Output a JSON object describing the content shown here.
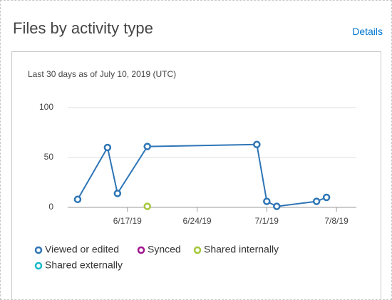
{
  "header": {
    "title": "Files by activity type",
    "link": "Details"
  },
  "chart_data": {
    "type": "line",
    "subtitle": "Last 30 days as of July 10, 2019 (UTC)",
    "xlim": [
      "6/11/19",
      "7/10/19"
    ],
    "xticks": [
      "6/17/19",
      "6/24/19",
      "7/1/19",
      "7/8/19"
    ],
    "ylim": [
      0,
      100
    ],
    "yticks": [
      0,
      50,
      100
    ],
    "grid": true,
    "series": [
      {
        "name": "Viewed or edited",
        "color": "#2e75b6",
        "x": [
          "6/12/19",
          "6/15/19",
          "6/16/19",
          "6/19/19",
          "6/30/19",
          "7/1/19",
          "7/2/19",
          "7/6/19",
          "7/7/19"
        ],
        "values": [
          8,
          60,
          14,
          61,
          63,
          6,
          1,
          6,
          10
        ]
      },
      {
        "name": "Synced",
        "color": "#a1158f",
        "x": [],
        "values": []
      },
      {
        "name": "Shared internally",
        "color": "#a4c639",
        "x": [
          "6/19/19"
        ],
        "values": [
          1
        ]
      },
      {
        "name": "Shared externally",
        "color": "#17b9c9",
        "x": [],
        "values": []
      }
    ]
  }
}
